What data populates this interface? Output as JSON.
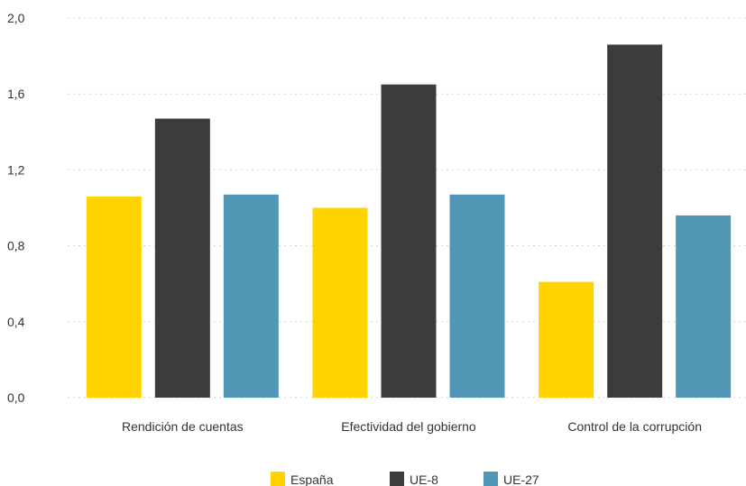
{
  "chart_data": {
    "type": "bar",
    "title": "",
    "xlabel": "",
    "ylabel": "",
    "categories": [
      "Rendición de cuentas",
      "Efectividad del gobierno",
      "Control de la corrupción"
    ],
    "series": [
      {
        "name": "España",
        "values": [
          1.06,
          1.0,
          0.61
        ],
        "color": "#FFD200"
      },
      {
        "name": "UE-8",
        "values": [
          1.47,
          1.65,
          1.86
        ],
        "color": "#3C3C3A"
      },
      {
        "name": "UE-27",
        "values": [
          1.07,
          1.07,
          0.96
        ],
        "color": "#5296B5"
      }
    ],
    "yticks": [
      "0,0",
      "0,4",
      "0,8",
      "1,2",
      "1,6",
      "2,0"
    ],
    "ylim": [
      0,
      2.0
    ],
    "grid": true,
    "legend_position": "bottom-center"
  }
}
